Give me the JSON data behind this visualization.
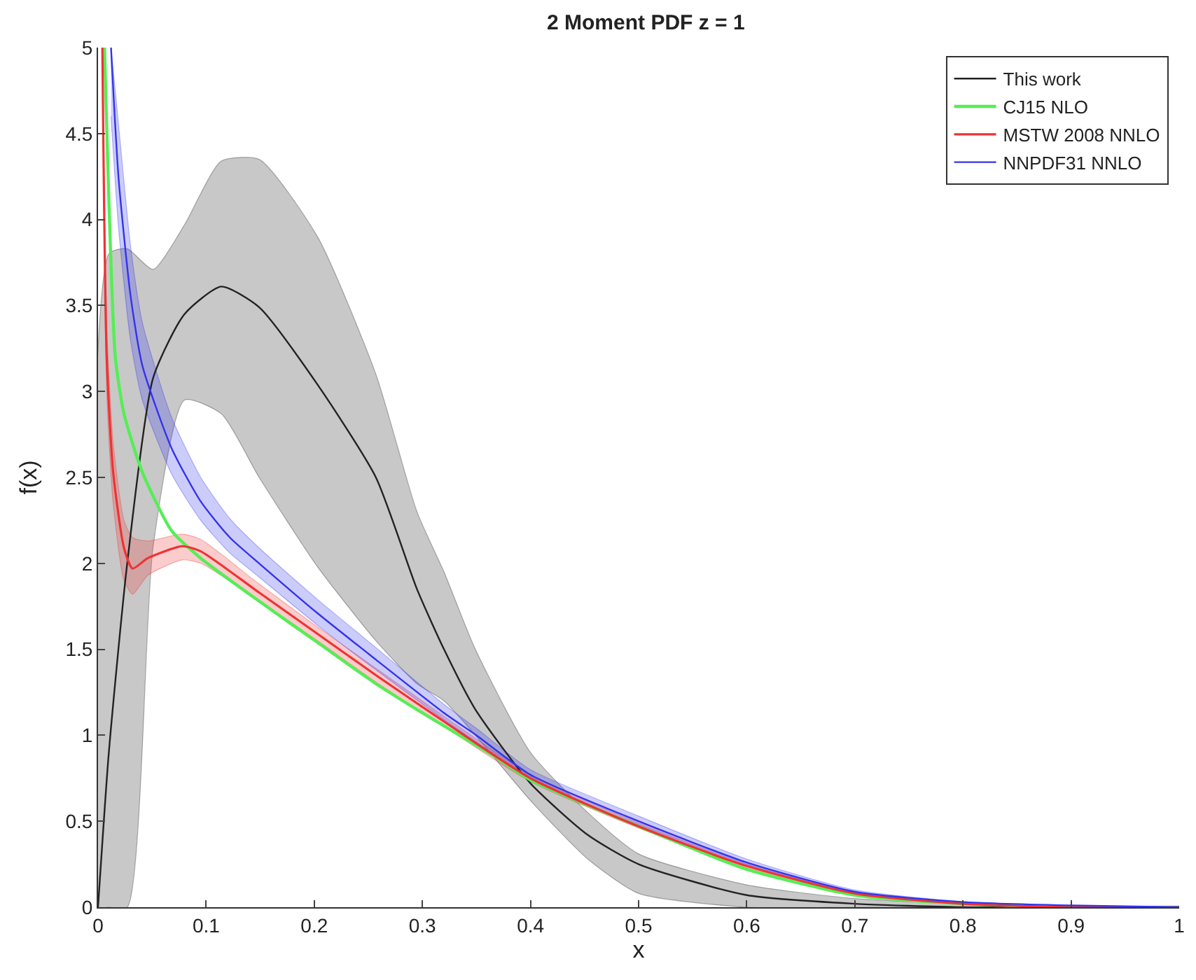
{
  "chart_data": {
    "type": "line",
    "title": "2 Moment PDF z = 1",
    "xlabel": "x",
    "ylabel": "f(x)",
    "xlim": [
      0,
      1
    ],
    "xticks": [
      0,
      0.1,
      0.2,
      0.3,
      0.4,
      0.5,
      0.6,
      0.7,
      0.8,
      0.9,
      1
    ],
    "ylim": [
      0,
      5
    ],
    "yticks": [
      0,
      0.5,
      1,
      1.5,
      2,
      2.5,
      3,
      3.5,
      4,
      4.5,
      5
    ],
    "grid": false,
    "legend": "top right",
    "marker": "none",
    "line_style": "solid",
    "series": [
      {
        "name": "This work",
        "color": "#222222",
        "x": [
          0,
          0.01,
          0.027,
          0.051,
          0.08,
          0.114,
          0.149,
          0.203,
          0.257,
          0.295,
          0.32,
          0.349,
          0.4,
          0.453,
          0.5,
          0.6,
          0.7,
          0.8,
          0.9,
          1
        ],
        "values": [
          0,
          0.9,
          2.0,
          3.08,
          3.45,
          3.61,
          3.49,
          3.04,
          2.5,
          1.85,
          1.5,
          1.15,
          0.72,
          0.42,
          0.25,
          0.07,
          0.02,
          0,
          0,
          0
        ],
        "lower": [
          0,
          0,
          0,
          2.1,
          2.95,
          2.87,
          2.5,
          1.98,
          1.55,
          1.3,
          1.2,
          1.0,
          0.62,
          0.28,
          0.08,
          0,
          0,
          0,
          0,
          0
        ],
        "upper": [
          0,
          3.8,
          3.83,
          3.71,
          3.97,
          4.34,
          4.35,
          3.9,
          3.1,
          2.3,
          1.95,
          1.5,
          0.9,
          0.55,
          0.31,
          0.13,
          0.05,
          0.02,
          0,
          0
        ]
      },
      {
        "name": "CJ15 NLO",
        "color": "#55ee55",
        "x": [
          0.006,
          0.016,
          0.024,
          0.041,
          0.068,
          0.095,
          0.149,
          0.203,
          0.257,
          0.3,
          0.371,
          0.4,
          0.5,
          0.6,
          0.7,
          0.8,
          0.9,
          1
        ],
        "values": [
          5,
          3.2,
          2.87,
          2.53,
          2.19,
          2.03,
          1.78,
          1.54,
          1.3,
          1.13,
          0.86,
          0.74,
          0.47,
          0.22,
          0.07,
          0.02,
          0,
          0
        ]
      },
      {
        "name": "MSTW 2008 NNLO",
        "color": "#ee3333",
        "x": [
          0.004,
          0.008,
          0.014,
          0.024,
          0.032,
          0.046,
          0.078,
          0.095,
          0.149,
          0.203,
          0.257,
          0.32,
          0.4,
          0.5,
          0.6,
          0.7,
          0.8,
          0.9,
          1
        ],
        "values": [
          5,
          3.2,
          2.53,
          2.09,
          1.97,
          2.03,
          2.1,
          2.07,
          1.83,
          1.59,
          1.35,
          1.08,
          0.75,
          0.47,
          0.24,
          0.08,
          0.02,
          0,
          0
        ],
        "lower": [
          5,
          3.0,
          2.35,
          1.9,
          1.82,
          1.93,
          2.02,
          2.0,
          1.78,
          1.55,
          1.31,
          1.05,
          0.73,
          0.46,
          0.23,
          0.075,
          0.022,
          0.004,
          0
        ],
        "upper": [
          5,
          3.4,
          2.7,
          2.25,
          2.15,
          2.13,
          2.17,
          2.14,
          1.88,
          1.63,
          1.39,
          1.11,
          0.77,
          0.49,
          0.25,
          0.085,
          0.026,
          0.006,
          0
        ]
      },
      {
        "name": "NNPDF31 NNLO",
        "color": "#3333ee",
        "x": [
          0.012,
          0.019,
          0.03,
          0.041,
          0.068,
          0.095,
          0.122,
          0.149,
          0.203,
          0.257,
          0.32,
          0.35,
          0.4,
          0.5,
          0.6,
          0.7,
          0.8,
          0.9,
          1
        ],
        "values": [
          5,
          4.24,
          3.56,
          3.15,
          2.67,
          2.36,
          2.15,
          2.0,
          1.71,
          1.44,
          1.13,
          1.0,
          0.77,
          0.5,
          0.26,
          0.09,
          0.03,
          0.01,
          0
        ],
        "lower": [
          4.6,
          3.95,
          3.3,
          2.95,
          2.52,
          2.25,
          2.06,
          1.92,
          1.64,
          1.38,
          1.09,
          0.96,
          0.74,
          0.48,
          0.25,
          0.085,
          0.025,
          0.005,
          0
        ],
        "upper": [
          5,
          4.55,
          3.85,
          3.4,
          2.85,
          2.5,
          2.26,
          2.09,
          1.79,
          1.51,
          1.18,
          1.04,
          0.8,
          0.53,
          0.28,
          0.1,
          0.032,
          0.009,
          0
        ]
      }
    ]
  }
}
